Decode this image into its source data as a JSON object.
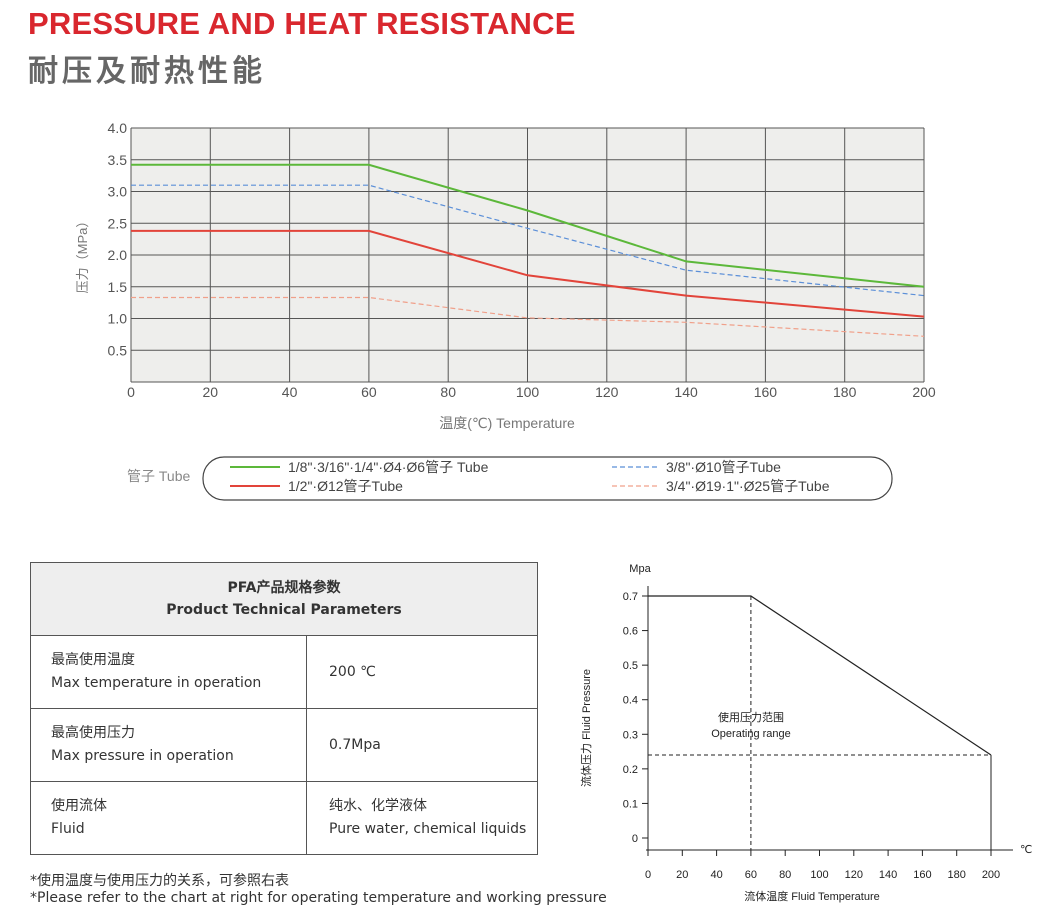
{
  "header": {
    "title_en": "PRESSURE AND HEAT RESISTANCE",
    "title_cn": "耐压及耐热性能"
  },
  "chart_data": [
    {
      "type": "line",
      "xlabel": "温度(℃) Temperature",
      "ylabel": "压力（MPa）",
      "xlim": [
        0,
        200
      ],
      "ylim": [
        0,
        4.0
      ],
      "x_ticks": [
        "0",
        "20",
        "40",
        "60",
        "80",
        "100",
        "120",
        "140",
        "160",
        "180",
        "200"
      ],
      "y_ticks": [
        "0.5",
        "1.0",
        "1.5",
        "2.0",
        "2.5",
        "3.0",
        "3.5",
        "4.0"
      ],
      "grid": true,
      "legend_title": "管子 Tube",
      "legend_position": "bottom",
      "series": [
        {
          "name": "1/8\"·3/16\"·1/4\"·Ø4·Ø6管子 Tube",
          "color": "#5cb83a",
          "style": "solid",
          "points": [
            [
              0,
              3.42
            ],
            [
              60,
              3.42
            ],
            [
              100,
              2.7
            ],
            [
              140,
              1.9
            ],
            [
              200,
              1.5
            ]
          ]
        },
        {
          "name": "1/2\"·Ø12管子Tube",
          "color": "#e2443a",
          "style": "solid",
          "points": [
            [
              0,
              2.38
            ],
            [
              60,
              2.38
            ],
            [
              100,
              1.68
            ],
            [
              140,
              1.36
            ],
            [
              200,
              1.03
            ]
          ]
        },
        {
          "name": "3/8\"·Ø10管子Tube",
          "color": "#5b8fd8",
          "style": "dashed",
          "points": [
            [
              0,
              3.1
            ],
            [
              60,
              3.1
            ],
            [
              100,
              2.42
            ],
            [
              140,
              1.76
            ],
            [
              200,
              1.36
            ]
          ]
        },
        {
          "name": "3/4\"·Ø19·1\"·Ø25管子Tube",
          "color": "#f0a08a",
          "style": "dashed",
          "points": [
            [
              0,
              1.33
            ],
            [
              60,
              1.33
            ],
            [
              100,
              1.01
            ],
            [
              140,
              0.94
            ],
            [
              200,
              0.72
            ]
          ]
        }
      ]
    },
    {
      "type": "line",
      "xlabel": "流体温度 Fluid Temperature",
      "ylabel": "流体压力  Fluid Pressure",
      "y_unit": "Mpa",
      "x_unit": "℃",
      "xlim": [
        0,
        200
      ],
      "ylim": [
        0,
        0.7
      ],
      "x_ticks": [
        "0",
        "20",
        "40",
        "60",
        "80",
        "100",
        "120",
        "140",
        "160",
        "180",
        "200"
      ],
      "y_ticks": [
        "0",
        "0.1",
        "0.2",
        "0.3",
        "0.4",
        "0.5",
        "0.6",
        "0.7"
      ],
      "annotation_cn": "使用压力范围",
      "annotation_en": "Operating range",
      "series": [
        {
          "color": "#222222",
          "style": "solid",
          "points": [
            [
              0,
              0.7
            ],
            [
              60,
              0.7
            ],
            [
              200,
              0.24
            ]
          ]
        }
      ],
      "guides": [
        {
          "from": [
            60,
            0.7
          ],
          "to": [
            60,
            0
          ]
        },
        {
          "from": [
            0,
            0.24
          ],
          "to": [
            200,
            0.24
          ]
        }
      ]
    }
  ],
  "table": {
    "header_cn": "PFA产品规格参数",
    "header_en": "Product Technical Parameters",
    "rows": [
      {
        "label_cn": "最高使用温度",
        "label_en": "Max temperature in operation",
        "value_cn": "",
        "value_en": "200 ℃"
      },
      {
        "label_cn": "最高使用压力",
        "label_en": "Max pressure in operation",
        "value_cn": "",
        "value_en": "0.7Mpa"
      },
      {
        "label_cn": "使用流体",
        "label_en": "Fluid",
        "value_cn": "纯水、化学液体",
        "value_en": "Pure water, chemical liquids"
      }
    ]
  },
  "footnote": {
    "cn": "*使用温度与使用压力的关系，可参照右表",
    "en": "*Please refer to the chart at right for operating temperature and working pressure"
  }
}
